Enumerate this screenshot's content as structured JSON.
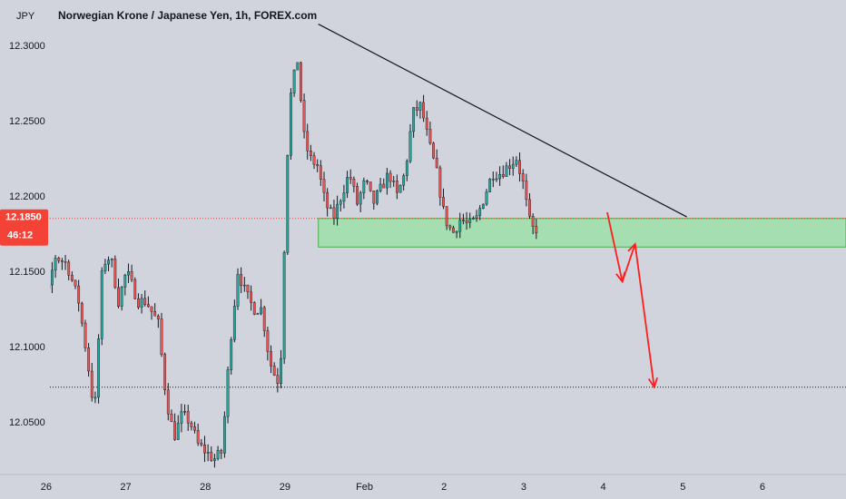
{
  "chart_data": {
    "type": "candlestick",
    "title": "Norwegian Krone / Japanese Yen, 1h, FOREX.com",
    "currency_label": "JPY",
    "y_ticks": [
      "12.3000",
      "12.2500",
      "12.2000",
      "12.1500",
      "12.1000",
      "12.0500"
    ],
    "y_tick_values": [
      12.3,
      12.25,
      12.2,
      12.15,
      12.1,
      12.05
    ],
    "ylim": [
      12.015,
      12.33
    ],
    "x_ticks": [
      "26",
      "27",
      "28",
      "29",
      "Feb",
      "2",
      "3",
      "4",
      "5",
      "6"
    ],
    "x_tick_positions": [
      1,
      2,
      3,
      4,
      5,
      6,
      7,
      8,
      9,
      10
    ],
    "xlim": [
      0.42,
      11.05
    ],
    "current_price": {
      "value": "12.1850",
      "countdown": "46:12",
      "level": 12.185
    },
    "support_zone": {
      "from": 12.166,
      "to": 12.185,
      "x_start": 4.42
    },
    "target_line": 12.073,
    "trendline": {
      "from": [
        4.42,
        12.314
      ],
      "to": [
        9.05,
        12.186
      ]
    },
    "projection_path": [
      [
        8.05,
        12.189
      ],
      [
        8.24,
        12.143
      ],
      [
        8.4,
        12.168
      ],
      [
        8.64,
        12.073
      ]
    ],
    "colors": {
      "background": "#d1d4dc",
      "up_candle": "#26a69a",
      "down_candle": "#ef5350",
      "zone_fill": "#a5deb0",
      "zone_border": "#4caf50",
      "arrow": "#ff1e1e",
      "price_line": "#f44336",
      "trendline": "#131722"
    }
  }
}
